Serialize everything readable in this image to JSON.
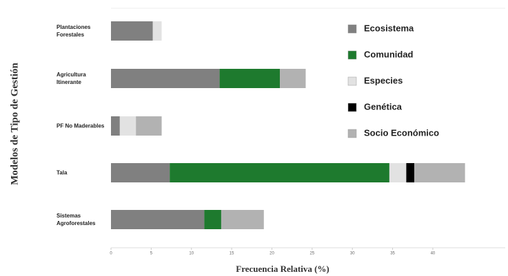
{
  "chart_data": {
    "type": "stacked-bar-horizontal",
    "xlabel": "Frecuencia Relativa (%)",
    "ylabel": "Modelos de Tipo de Gestión",
    "categories": [
      "Plantaciones Forestales",
      "Agricultura Itinerante",
      "PF No Maderables",
      "Tala",
      "Sistemas Agroforestales"
    ],
    "series": [
      {
        "name": "Ecosistema",
        "color": "#808080",
        "values": [
          5.2,
          13.5,
          1.1,
          7.3,
          11.6
        ]
      },
      {
        "name": "Comunidad",
        "color": "#1e7a2e",
        "values": [
          0,
          7.5,
          0,
          27.3,
          2.1
        ]
      },
      {
        "name": "Especies",
        "color": "#e2e2e2",
        "values": [
          1.1,
          0,
          2.0,
          2.1,
          0
        ]
      },
      {
        "name": "Genética",
        "color": "#000000",
        "values": [
          0,
          0,
          0,
          1.0,
          0
        ]
      },
      {
        "name": "Socio Económico",
        "color": "#b2b2b2",
        "values": [
          0,
          3.2,
          3.2,
          6.3,
          5.3
        ]
      }
    ],
    "xlim": [
      0,
      49
    ],
    "xticks": [
      0,
      5,
      10,
      15,
      20,
      25,
      30,
      35,
      40
    ],
    "legend": "upper right"
  }
}
